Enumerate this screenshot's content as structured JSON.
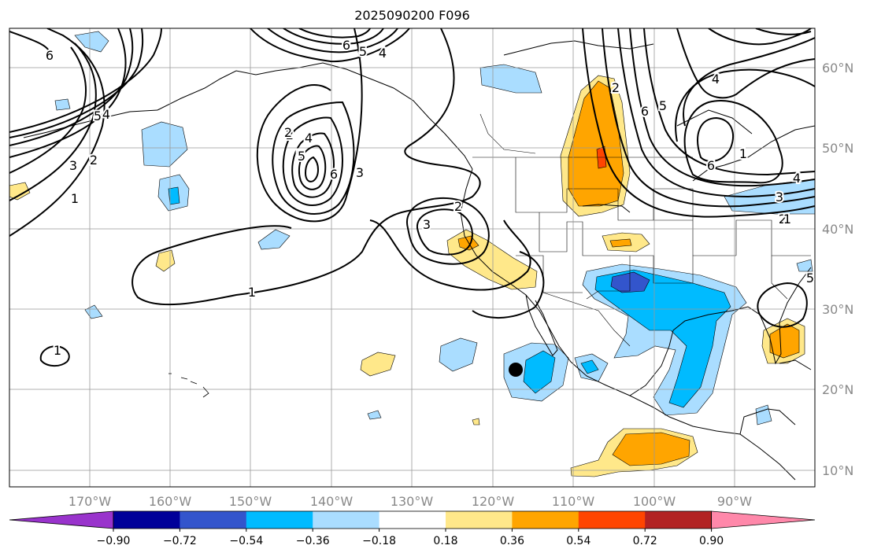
{
  "title": "2025090200 F096",
  "axes": {
    "lon_ticks": [
      "170°W",
      "160°W",
      "150°W",
      "140°W",
      "130°W",
      "120°W",
      "110°W",
      "100°W",
      "90°W"
    ],
    "lat_ticks": [
      "60°N",
      "50°N",
      "40°N",
      "30°N",
      "20°N",
      "10°N"
    ]
  },
  "contour_labels": [
    "6",
    "5",
    "4",
    "6",
    "5",
    "4",
    "2",
    "3",
    "2",
    "1",
    "5",
    "4",
    "2",
    "5",
    "6",
    "3",
    "1",
    "3",
    "2",
    "1",
    "2",
    "6",
    "5",
    "4",
    "3",
    "2",
    "1",
    "6",
    "4",
    "5",
    "1",
    "1"
  ],
  "marker": {
    "name": "black-dot",
    "color": "#000000"
  },
  "colorbar": {
    "ticks": [
      "−0.90",
      "−0.72",
      "−0.54",
      "−0.36",
      "−0.18",
      "0.18",
      "0.36",
      "0.54",
      "0.72",
      "0.90"
    ],
    "colors": [
      "#9933cc",
      "#000099",
      "#3355cc",
      "#00bbff",
      "#aaddff",
      "#ffffff",
      "#ffe88a",
      "#ffa500",
      "#ff4500",
      "#b22222",
      "#ff88aa"
    ]
  },
  "colors": {
    "light_blue": "#aaddff",
    "blue": "#00bbff",
    "dark_blue": "#3355cc",
    "yellow": "#ffe88a",
    "orange": "#ffa500",
    "red": "#ff4500",
    "grid": "#999999",
    "contour": "#000000"
  }
}
